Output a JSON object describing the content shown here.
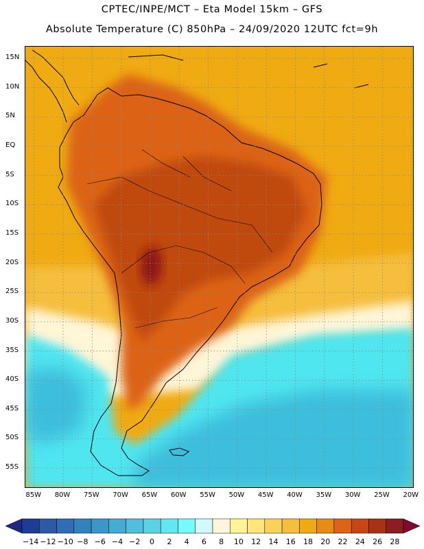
{
  "header": {
    "title_line1": "CPTEC/INPE/MCT –  Eta Model 15km – GFS",
    "title_line2": "Absolute Temperature (C) 850hPa – 24/09/2020 12UTC fct=9h"
  },
  "map": {
    "lat_labels": [
      "15N",
      "10N",
      "5N",
      "EQ",
      "5S",
      "10S",
      "15S",
      "20S",
      "25S",
      "30S",
      "35S",
      "40S",
      "45S",
      "50S",
      "55S"
    ],
    "lat_values": [
      15,
      10,
      5,
      0,
      -5,
      -10,
      -15,
      -20,
      -25,
      -30,
      -35,
      -40,
      -45,
      -50,
      -55
    ],
    "lat_range": [
      17,
      -58.5
    ],
    "lon_labels": [
      "85W",
      "80W",
      "75W",
      "70W",
      "65W",
      "60W",
      "55W",
      "50W",
      "45W",
      "40W",
      "35W",
      "30W",
      "25W",
      "20W"
    ],
    "lon_values": [
      -85,
      -80,
      -75,
      -70,
      -65,
      -60,
      -55,
      -50,
      -45,
      -40,
      -35,
      -30,
      -25,
      -20
    ],
    "lon_range": [
      -86.5,
      -19.5
    ],
    "colors": {
      "ocean_north": "#f0aa12",
      "land_warm": "#dc6418",
      "land_hot": "#c04a10",
      "land_hottest": "#8c1414",
      "pale": "#fff5d7",
      "cool_ocean": "#50e6f0",
      "cold_ocean": "#3cbedc",
      "coast_line": "#000000",
      "grid_line": "#888888"
    }
  },
  "colorbar": {
    "labels": [
      "-14",
      "-12",
      "-10",
      "-8",
      "-6",
      "-4",
      "-2",
      "0",
      "2",
      "4",
      "6",
      "8",
      "10",
      "12",
      "14",
      "16",
      "18",
      "20",
      "22",
      "24",
      "26",
      "28"
    ],
    "colors": [
      "#1e3c96",
      "#2d5aa5",
      "#2d6eb4",
      "#3282be",
      "#3c96c8",
      "#46aad2",
      "#50bedc",
      "#5ad2e6",
      "#64e6f0",
      "#78fafa",
      "#d2fafa",
      "#fff5dc",
      "#fff596",
      "#ffe678",
      "#fad25a",
      "#f5be3c",
      "#f0aa14",
      "#e68c14",
      "#dc6414",
      "#c84614",
      "#aa3214",
      "#8c1e1e"
    ],
    "under_color": "#1e2882",
    "over_color": "#820a32"
  }
}
